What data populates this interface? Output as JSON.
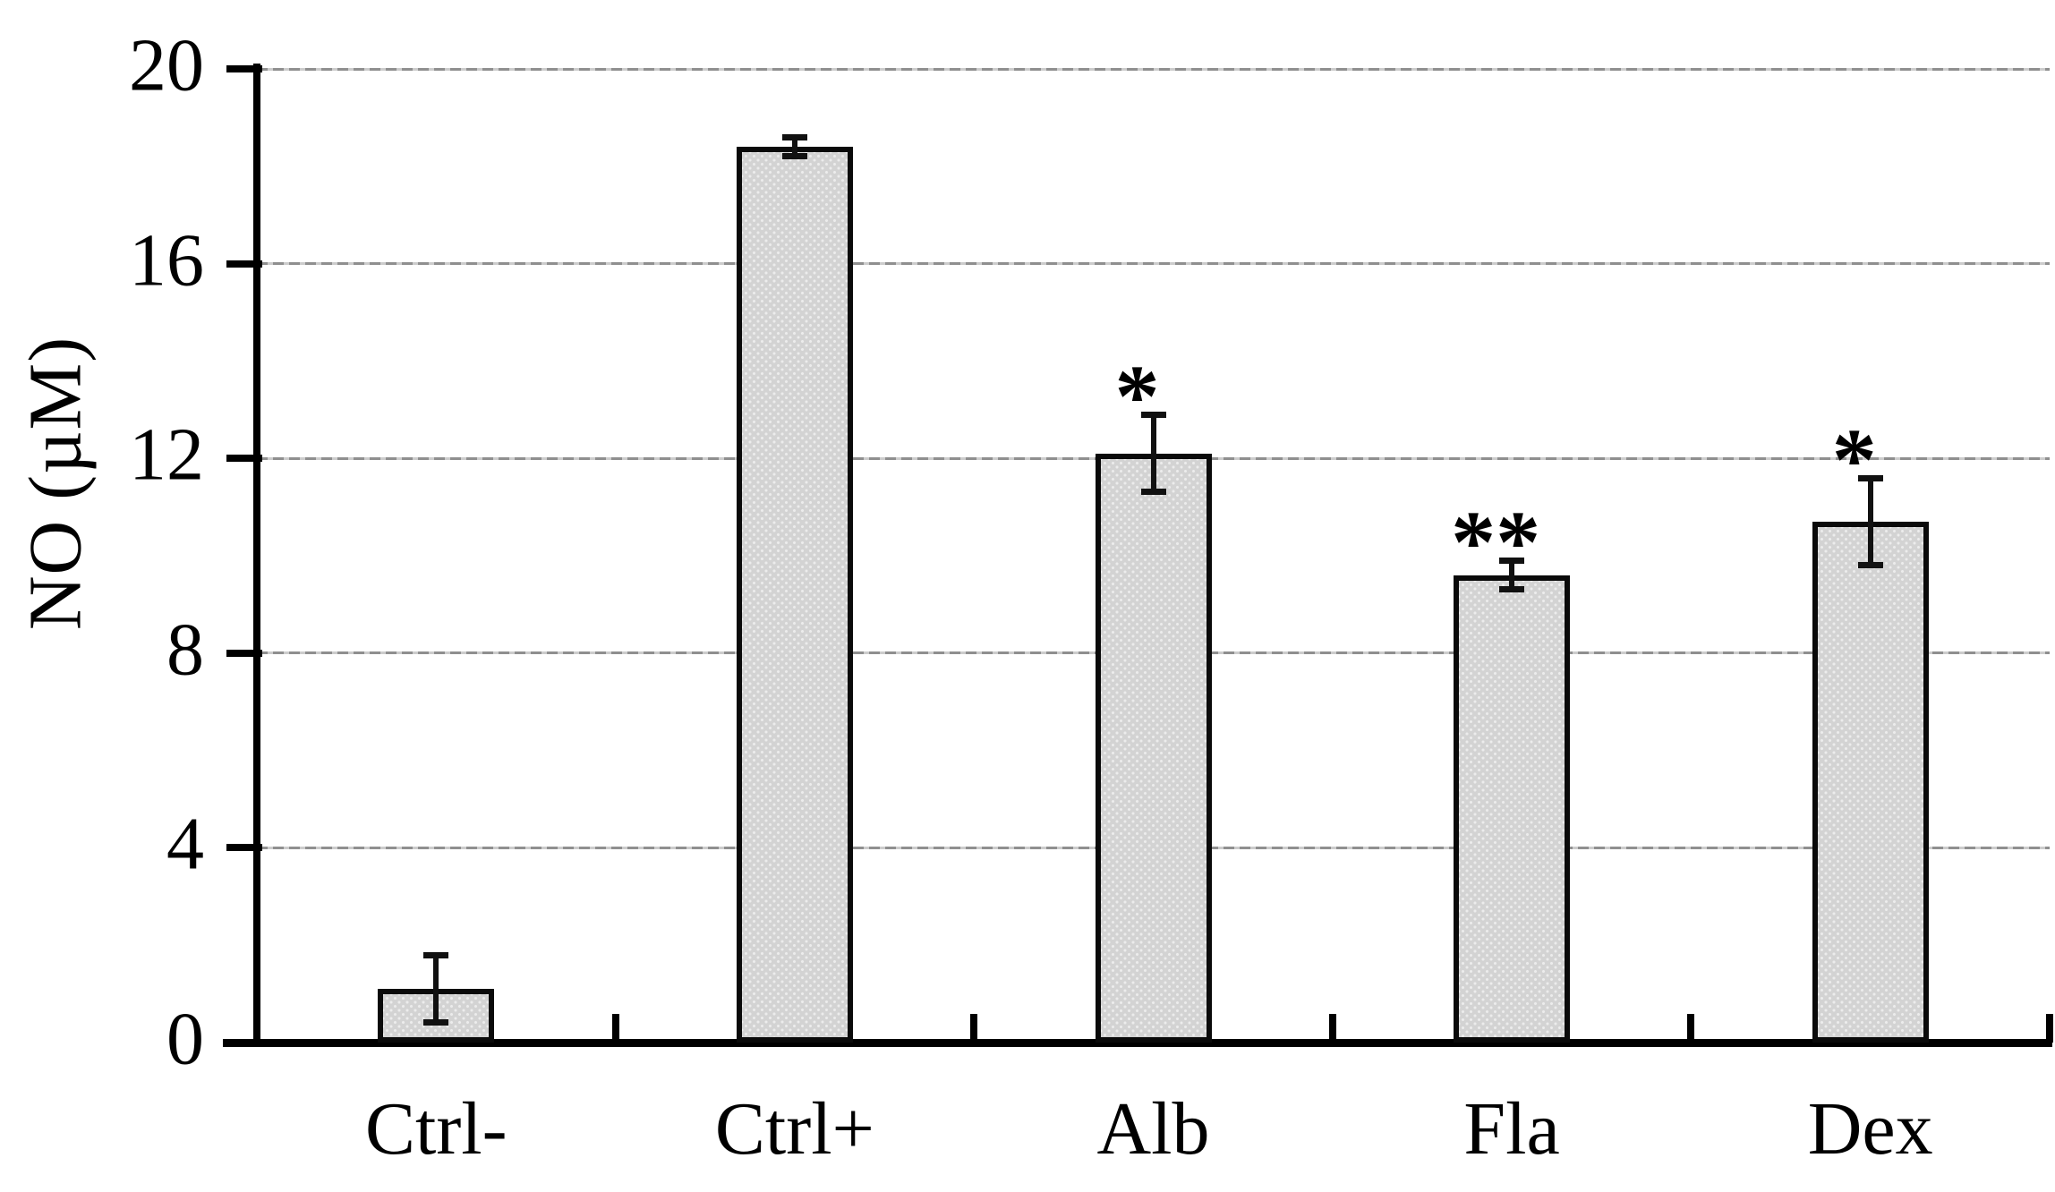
{
  "chart_data": {
    "type": "bar",
    "title": "",
    "ylabel": "NO (µM)",
    "xlabel": "",
    "categories": [
      "Ctrl-",
      "Ctrl+",
      "Alb",
      "Fla",
      "Dex"
    ],
    "values": [
      1.1,
      18.4,
      12.1,
      9.6,
      10.7
    ],
    "errors": [
      0.7,
      0.2,
      0.8,
      0.3,
      0.9
    ],
    "significance": [
      "",
      "",
      "*",
      "**",
      "*"
    ],
    "ylim": [
      0,
      20
    ],
    "yticks": [
      0,
      4,
      8,
      12,
      16,
      20
    ],
    "grid": true,
    "legend_position": "none",
    "colors": {
      "bar_fill": "#d3d3d3",
      "bar_dot": "#ececec",
      "bar_border": "#0a0a0a",
      "gridline": "#8f8f8f",
      "axis": "#000000",
      "text": "#000000",
      "background": "#ffffff"
    }
  }
}
